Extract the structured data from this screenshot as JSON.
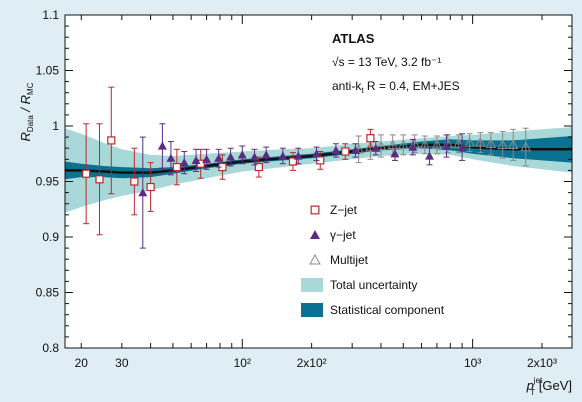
{
  "colors": {
    "background": "#dfeef4",
    "plot_bg": "#ffffff",
    "total_band": "#a8d8d8",
    "stat_band": "#0b7191",
    "fit_line": "#111111",
    "zjet": "#c0262d",
    "gammajet": "#5b2d82",
    "multijet": "#8a8a8a"
  },
  "chart_data": {
    "type": "scatter",
    "title": "ATLAS",
    "annotations": [
      "√s = 13 TeV, 3.2 fb⁻¹",
      "anti-k",
      "t",
      " R = 0.4, EM+JES"
    ],
    "ylabel": {
      "main": "R",
      "sub1": "Data",
      "sep": " / R",
      "sub2": "MC"
    },
    "xlabel": {
      "main": "p",
      "sup": "jet",
      "sub": "T",
      "unit": " [GeV]"
    },
    "x_scale": "log",
    "xlim": [
      17,
      2700
    ],
    "ylim": [
      0.8,
      1.1
    ],
    "y_ticks": [
      0.8,
      0.85,
      0.9,
      0.95,
      1,
      1.05,
      1.1
    ],
    "y_tick_labels": [
      "0.8",
      "0.85",
      "0.9",
      "0.95",
      "1",
      "1.05",
      "1.1"
    ],
    "x_ticks": [
      20,
      30,
      100,
      200,
      1000,
      2000
    ],
    "x_tick_labels": [
      "20",
      "30",
      "10²",
      "2x10²",
      "10³",
      "2x10³"
    ],
    "legend": {
      "position": "bottom-center",
      "entries": [
        "Z−jet",
        "γ−jet",
        "Multijet",
        "Total uncertainty",
        "Statistical component"
      ]
    },
    "fit_curve": {
      "x": [
        17,
        20,
        25,
        30,
        40,
        50,
        70,
        100,
        150,
        200,
        300,
        400,
        600,
        800,
        1000,
        1500,
        2000,
        2700
      ],
      "y": [
        0.96,
        0.96,
        0.959,
        0.958,
        0.958,
        0.96,
        0.964,
        0.968,
        0.971,
        0.973,
        0.977,
        0.98,
        0.983,
        0.983,
        0.981,
        0.979,
        0.979,
        0.979
      ]
    },
    "total_band": {
      "x": [
        17,
        20,
        25,
        30,
        40,
        50,
        70,
        100,
        150,
        200,
        300,
        400,
        600,
        800,
        1000,
        1500,
        2000,
        2700
      ],
      "upper": [
        0.998,
        0.993,
        0.985,
        0.979,
        0.974,
        0.973,
        0.975,
        0.977,
        0.979,
        0.98,
        0.984,
        0.986,
        0.989,
        0.991,
        0.992,
        0.995,
        0.997,
        0.999
      ],
      "lower": [
        0.922,
        0.927,
        0.933,
        0.937,
        0.942,
        0.947,
        0.953,
        0.959,
        0.963,
        0.966,
        0.97,
        0.973,
        0.975,
        0.974,
        0.97,
        0.964,
        0.961,
        0.958
      ]
    },
    "stat_band": {
      "x": [
        17,
        20,
        25,
        30,
        40,
        50,
        70,
        100,
        150,
        200,
        300,
        400,
        600,
        800,
        1000,
        1500,
        2000,
        2700
      ],
      "upper": [
        0.968,
        0.966,
        0.964,
        0.963,
        0.962,
        0.963,
        0.966,
        0.97,
        0.973,
        0.975,
        0.979,
        0.982,
        0.986,
        0.988,
        0.987,
        0.987,
        0.989,
        0.991
      ],
      "lower": [
        0.952,
        0.954,
        0.954,
        0.953,
        0.954,
        0.957,
        0.962,
        0.966,
        0.969,
        0.971,
        0.975,
        0.978,
        0.98,
        0.978,
        0.975,
        0.971,
        0.969,
        0.967
      ]
    },
    "series": [
      {
        "name": "Z−jet",
        "marker": "open-square",
        "x": [
          21,
          24,
          27,
          34,
          40,
          52,
          66,
          82,
          118,
          166,
          218,
          280,
          360
        ],
        "y": [
          0.957,
          0.952,
          0.987,
          0.95,
          0.945,
          0.963,
          0.966,
          0.963,
          0.963,
          0.968,
          0.969,
          0.977,
          0.989
        ],
        "err": [
          0.045,
          0.05,
          0.048,
          0.03,
          0.022,
          0.016,
          0.013,
          0.011,
          0.009,
          0.008,
          0.008,
          0.007,
          0.008
        ]
      },
      {
        "name": "γ−jet",
        "marker": "filled-triangle",
        "x": [
          37,
          45,
          49,
          56,
          63,
          70,
          79,
          89,
          100,
          113,
          127,
          150,
          175,
          210,
          255,
          310,
          380,
          460,
          550,
          650,
          770,
          900
        ],
        "y": [
          0.94,
          0.982,
          0.971,
          0.967,
          0.969,
          0.97,
          0.971,
          0.972,
          0.974,
          0.972,
          0.974,
          0.973,
          0.973,
          0.975,
          0.978,
          0.978,
          0.98,
          0.975,
          0.981,
          0.973,
          0.982,
          0.981
        ],
        "err": [
          0.05,
          0.02,
          0.015,
          0.01,
          0.01,
          0.009,
          0.008,
          0.008,
          0.008,
          0.007,
          0.007,
          0.007,
          0.007,
          0.006,
          0.006,
          0.006,
          0.006,
          0.006,
          0.007,
          0.008,
          0.01,
          0.012
        ]
      },
      {
        "name": "Multijet",
        "marker": "open-triangle",
        "x": [
          320,
          360,
          400,
          450,
          500,
          560,
          620,
          700,
          780,
          870,
          970,
          1080,
          1200,
          1350,
          1500,
          1700
        ],
        "y": [
          0.979,
          0.981,
          0.982,
          0.983,
          0.983,
          0.984,
          0.983,
          0.983,
          0.984,
          0.984,
          0.985,
          0.985,
          0.984,
          0.983,
          0.983,
          0.981
        ],
        "err": [
          0.012,
          0.011,
          0.01,
          0.009,
          0.009,
          0.008,
          0.008,
          0.008,
          0.008,
          0.008,
          0.008,
          0.009,
          0.01,
          0.012,
          0.014,
          0.017
        ]
      }
    ]
  }
}
